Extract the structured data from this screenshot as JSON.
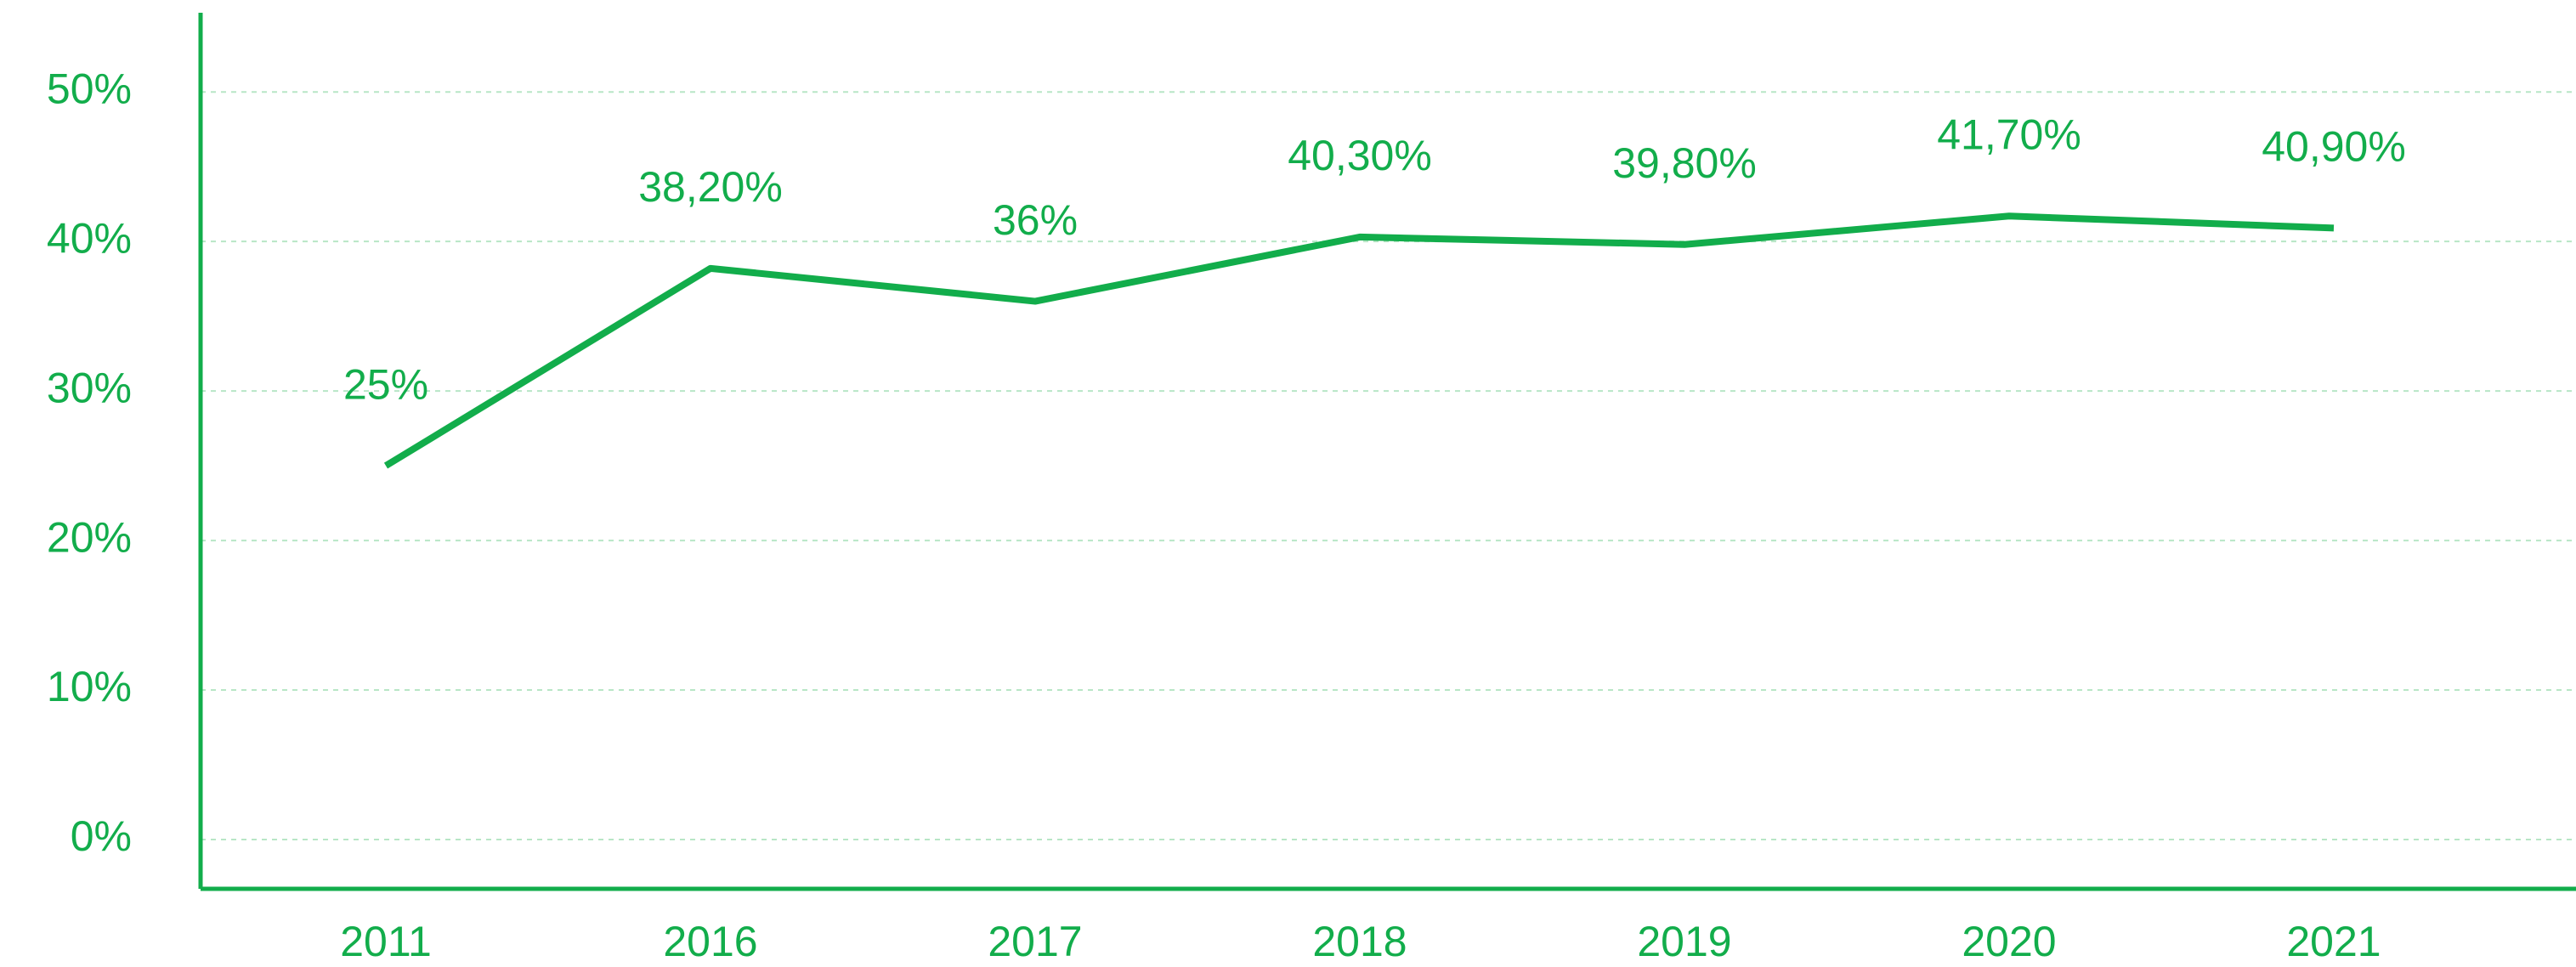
{
  "chart_data": {
    "type": "line",
    "categories": [
      "2011",
      "2016",
      "2017",
      "2018",
      "2019",
      "2020",
      "2021"
    ],
    "series": [
      {
        "color": "#12ad4b",
        "values": [
          25,
          38.2,
          36,
          40.3,
          39.8,
          41.7,
          40.9
        ],
        "value_labels": [
          "25%",
          "38,20%",
          "36%",
          "40,30%",
          "39,80%",
          "41,70%",
          "40,90%"
        ]
      }
    ],
    "ylim": [
      -3.3,
      55.3
    ],
    "yticks": [
      {
        "value": 0,
        "label": "0%"
      },
      {
        "value": 10,
        "label": "10%"
      },
      {
        "value": 20,
        "label": "20%"
      },
      {
        "value": 30,
        "label": "30%"
      },
      {
        "value": 40,
        "label": "40%"
      },
      {
        "value": 50,
        "label": "50%"
      }
    ],
    "grid": true
  }
}
